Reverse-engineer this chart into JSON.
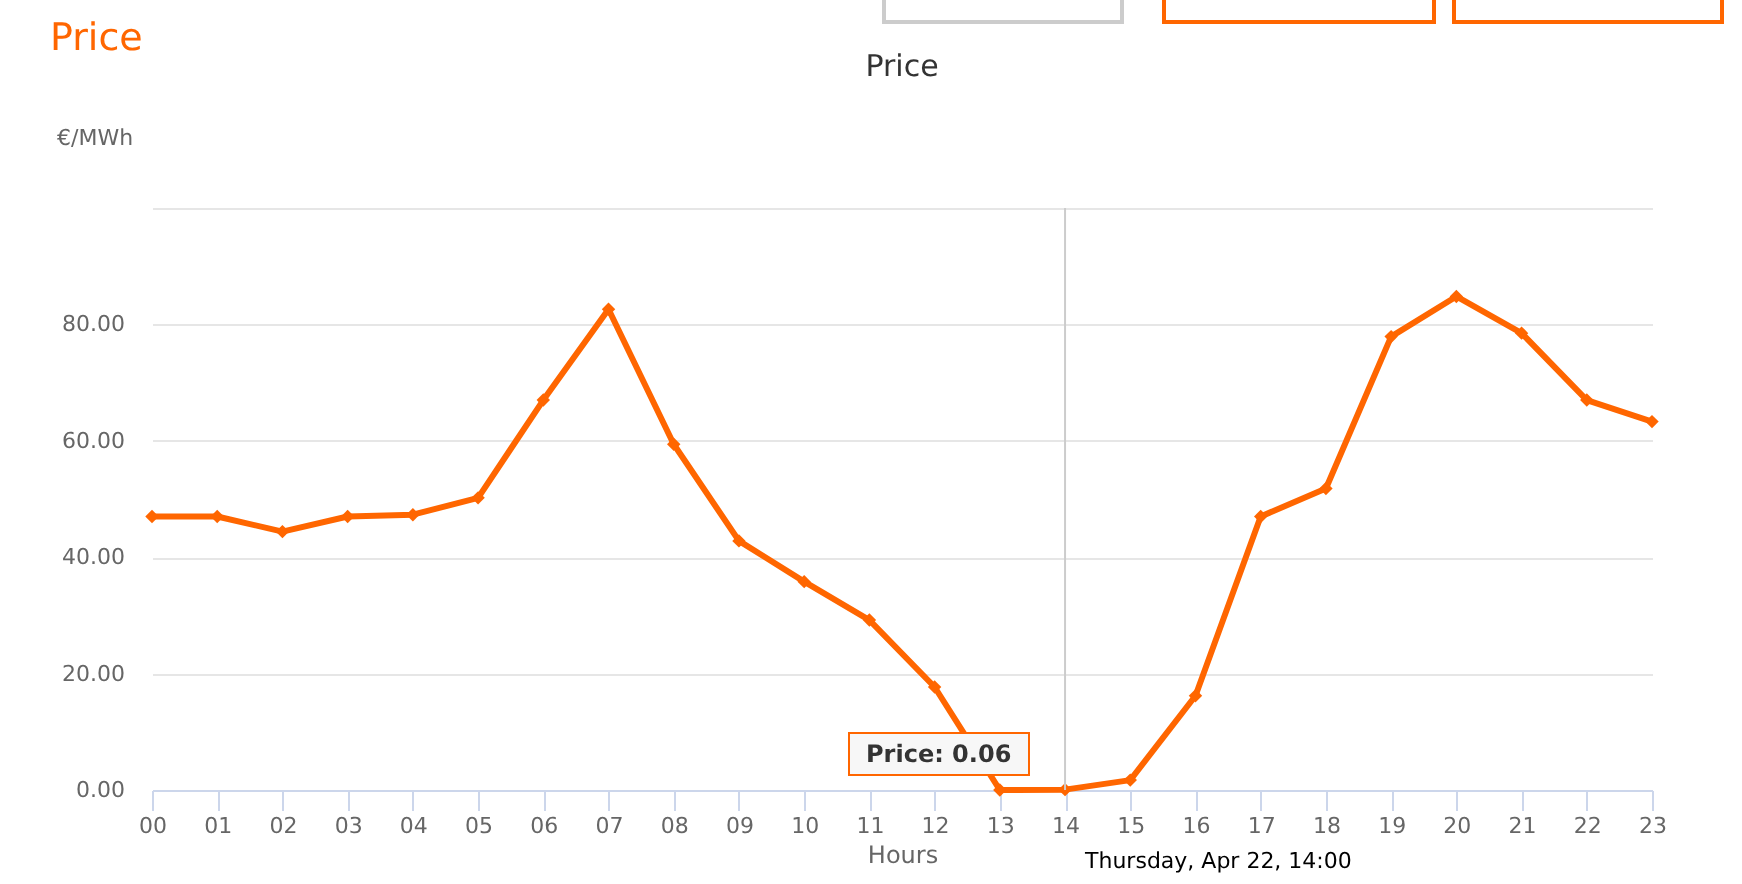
{
  "chart_data": {
    "type": "line",
    "title": "Price",
    "subtitle": "Price",
    "xlabel": "Hours",
    "ylabel": "€/MWh",
    "categories": [
      "00",
      "01",
      "02",
      "03",
      "04",
      "05",
      "06",
      "07",
      "08",
      "09",
      "10",
      "11",
      "12",
      "13",
      "14",
      "15",
      "16",
      "17",
      "18",
      "19",
      "20",
      "21",
      "22",
      "23"
    ],
    "series": [
      {
        "color": "#ff6600",
        "values": [
          47.0,
          47.0,
          44.4,
          47.0,
          47.3,
          50.2,
          67.0,
          82.6,
          59.4,
          42.8,
          35.8,
          29.2,
          17.7,
          0,
          0.06,
          1.7,
          16.2,
          47.0,
          51.8,
          77.9,
          84.8,
          78.5,
          67.0,
          63.3
        ]
      }
    ],
    "ylim": [
      0,
      100
    ],
    "yticks": [
      {
        "value": 0,
        "label": "0.00"
      },
      {
        "value": 20,
        "label": "20.00"
      },
      {
        "value": 40,
        "label": "40.00"
      },
      {
        "value": 60,
        "label": "60.00"
      },
      {
        "value": 80,
        "label": "80.00"
      },
      {
        "value": 100,
        "label": null
      }
    ],
    "grid": "y",
    "marker": "diamond",
    "line_style": "solid",
    "ref_lines": [
      {
        "axis": "x",
        "value": "14",
        "color": "#cccccc"
      }
    ],
    "annotations": [
      "Price: 0.06",
      {
        "text": "Thursday, Apr 22, 14:00",
        "x": "14",
        "y": 0.06
      }
    ]
  }
}
